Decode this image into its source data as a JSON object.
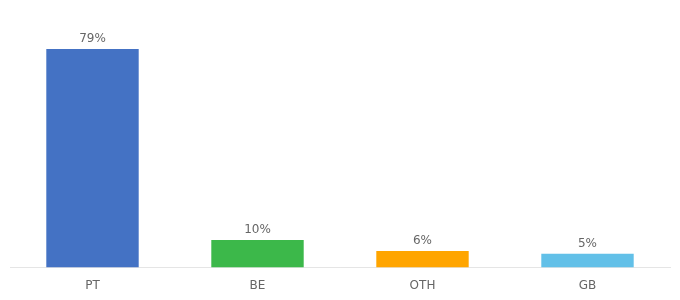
{
  "chart_data": {
    "type": "bar",
    "categories": [
      "PT",
      "BE",
      "OTH",
      "GB"
    ],
    "values": [
      79,
      10,
      6,
      5
    ],
    "value_labels": [
      "79%",
      "10%",
      "6%",
      "5%"
    ],
    "colors": [
      "#4472C4",
      "#3CB84A",
      "#FFA500",
      "#62C0E8"
    ],
    "ylim": [
      0,
      88
    ],
    "data_labels": true,
    "tick_labels": "x",
    "grid": false
  }
}
